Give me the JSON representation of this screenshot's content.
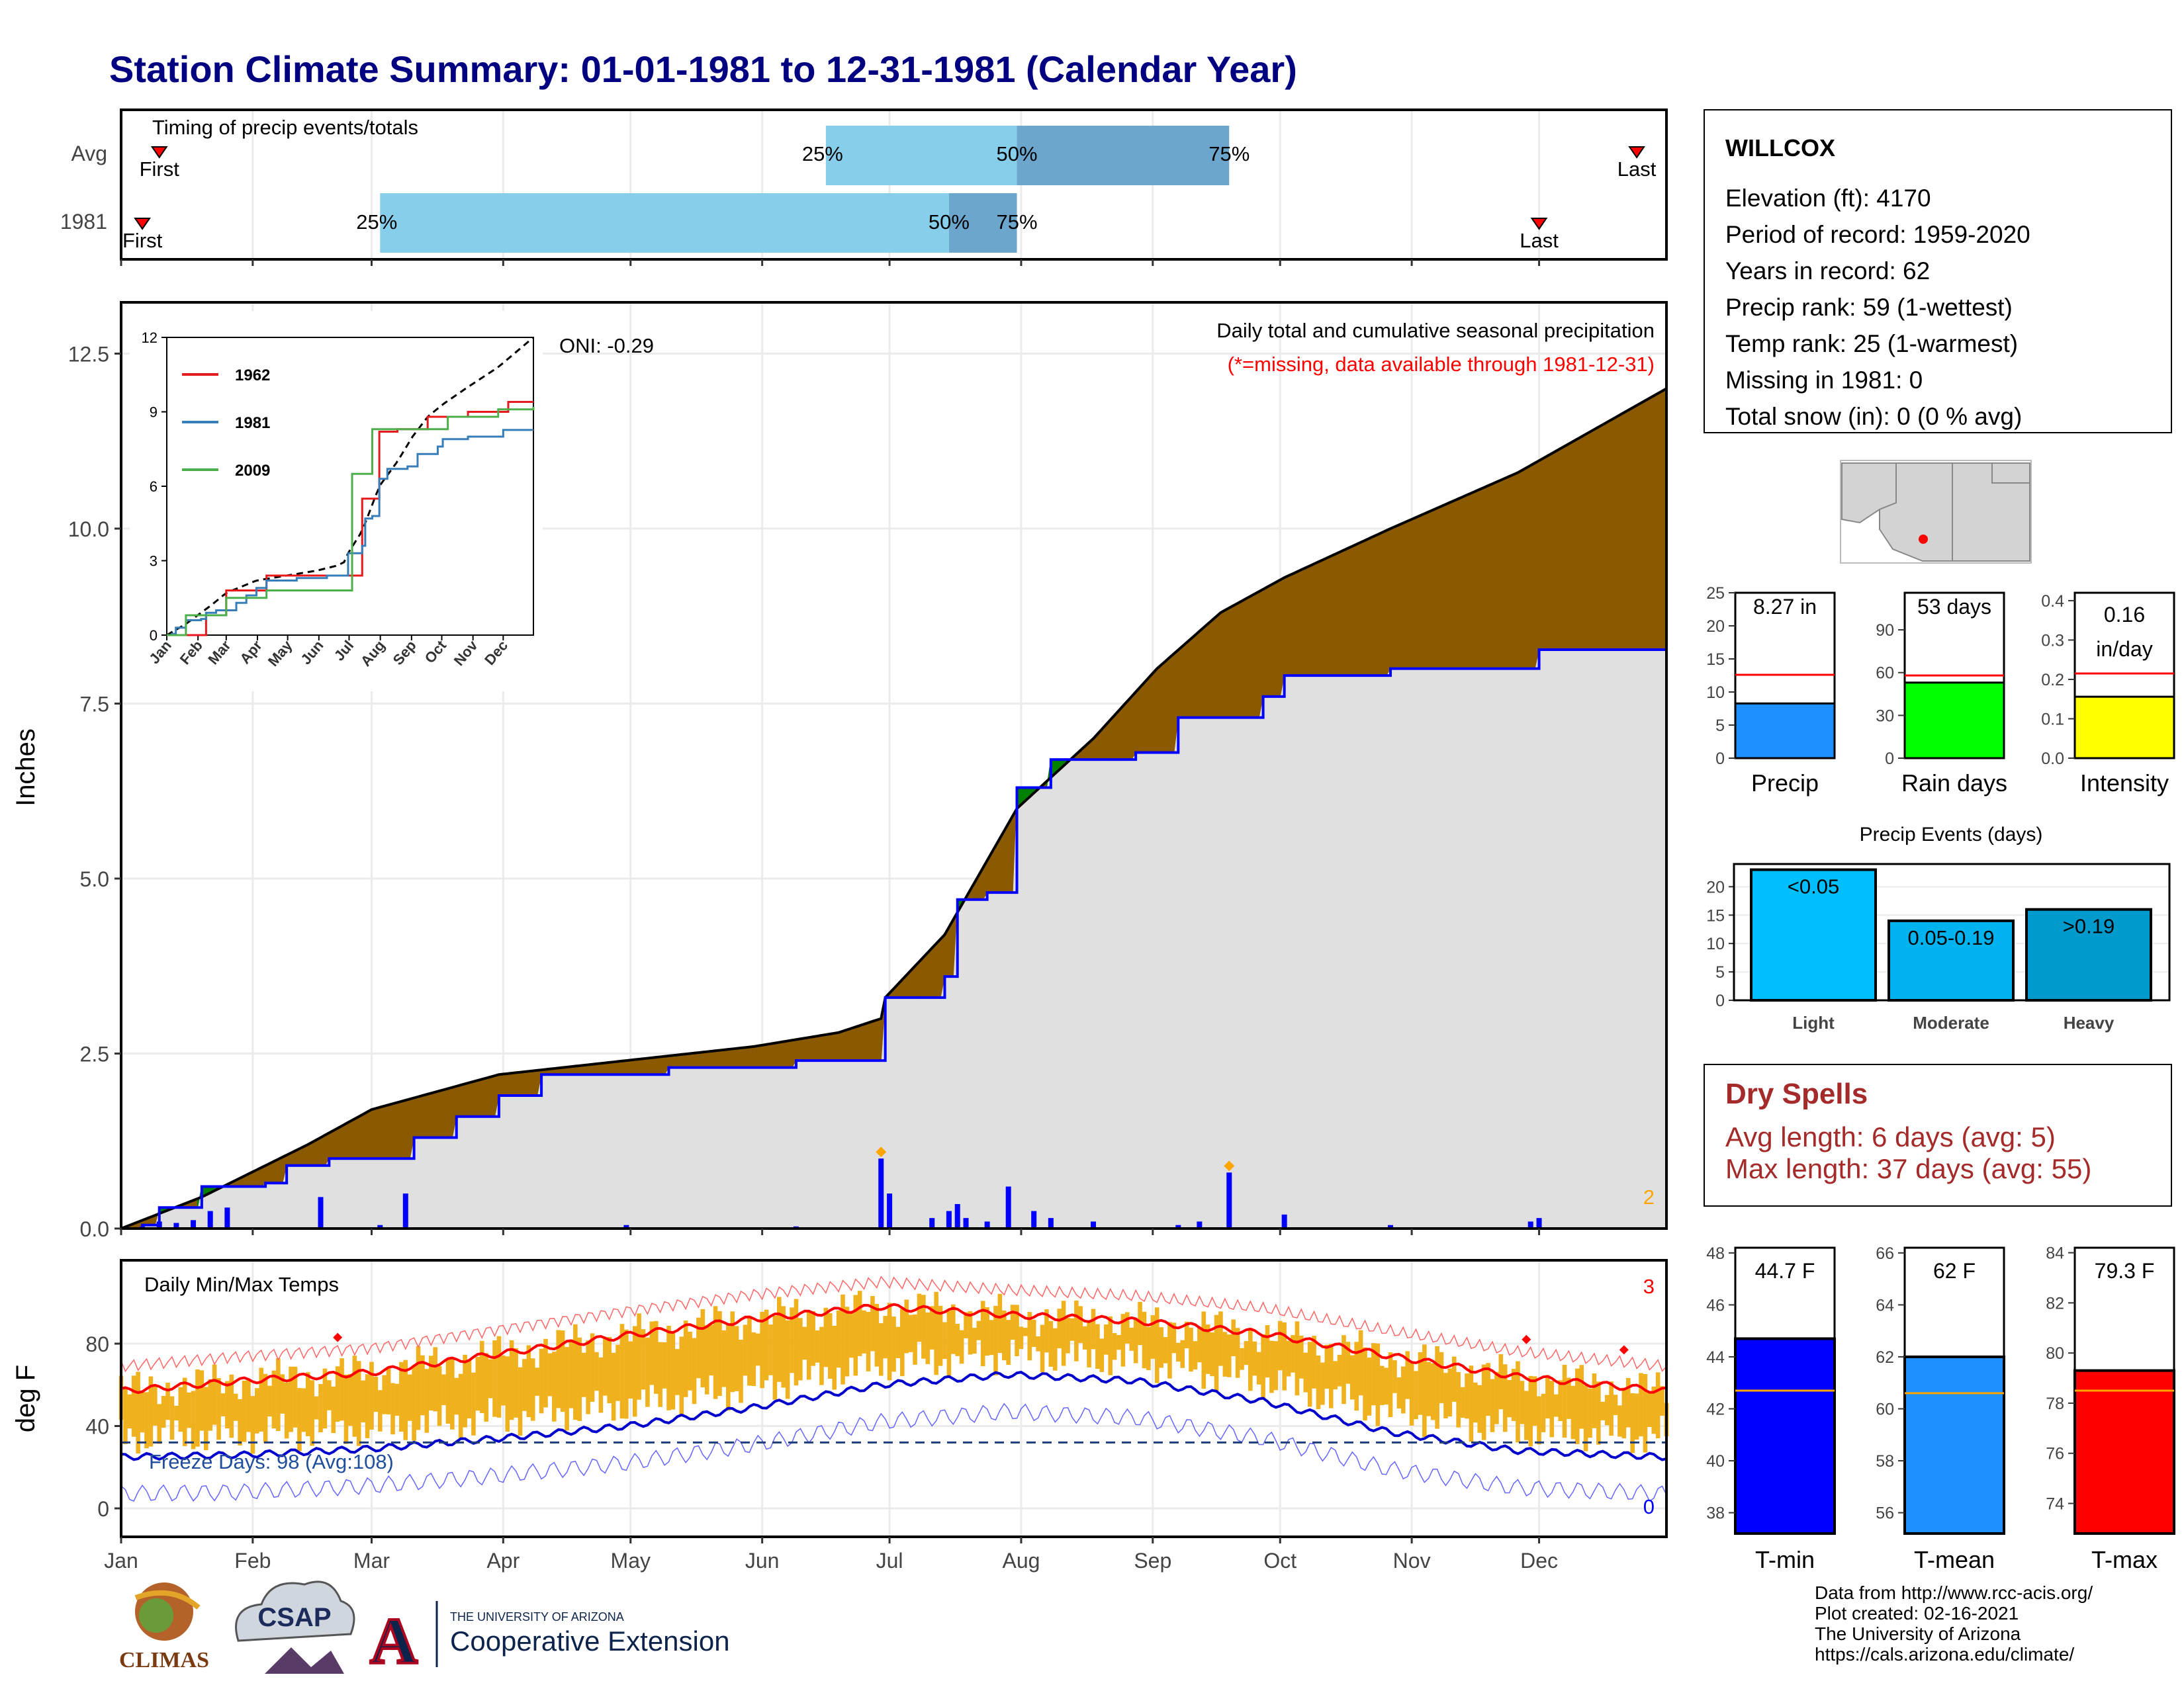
{
  "page": {
    "title": "Station Climate Summary: 01-01-1981 to 12-31-1981 (Calendar Year)"
  },
  "colors": {
    "title": "#000080",
    "light_blue": "#87ceeb",
    "mid_blue": "#6ca6cd",
    "brown": "#8b5a00",
    "green": "#008000",
    "gray_fill": "#e0e0e0",
    "blue_line": "#0000ff",
    "orange": "#ffa500",
    "gold": "#efb21e",
    "red": "#ff0000",
    "dry_spell": "#a52a2a"
  },
  "months": [
    "Jan",
    "Feb",
    "Mar",
    "Apr",
    "May",
    "Jun",
    "Jul",
    "Aug",
    "Sep",
    "Oct",
    "Nov",
    "Dec"
  ],
  "timing": {
    "title": "Timing of precip events/totals",
    "rows": [
      {
        "label": "Avg",
        "first_label": "First",
        "last_label": "Last",
        "first_day": 10,
        "last_day": 358,
        "p25": 167,
        "p50": 212,
        "p75": 262,
        "p25_label": "25%",
        "p50_label": "50%",
        "p75_label": "75%"
      },
      {
        "label": "1981",
        "first_label": "First",
        "last_label": "Last",
        "first_day": 6,
        "last_day": 335,
        "p25": 62,
        "p50": 196,
        "p75": 212,
        "p25_label": "25%",
        "p50_label": "50%",
        "p75_label": "75%"
      }
    ]
  },
  "main": {
    "ylabel": "Inches",
    "annotation_title": "Daily total and cumulative seasonal precipitation",
    "annotation_missing": "(*=missing, data available through 1981-12-31)",
    "oni": "ONI: -0.29",
    "corner_count": "2"
  },
  "inset": {
    "yticks": [
      "0",
      "3",
      "6",
      "9",
      "12"
    ],
    "xticks": [
      "Jan",
      "Feb",
      "Mar",
      "Apr",
      "May",
      "Jun",
      "Jul",
      "Aug",
      "Sep",
      "Oct",
      "Nov",
      "Dec"
    ],
    "legend": [
      {
        "label": "1962",
        "color": "#e41a1c"
      },
      {
        "label": "1981",
        "color": "#377eb8"
      },
      {
        "label": "2009",
        "color": "#4daf4a"
      }
    ]
  },
  "temps": {
    "title": "Daily Min/Max Temps",
    "ylabel": "deg F",
    "freeze_label": "Freeze Days: 98 (Avg:108)",
    "corner_top": "3",
    "corner_bottom": "0",
    "yticks": [
      "0",
      "40",
      "80"
    ]
  },
  "station": {
    "name": "WILLCOX",
    "lines": [
      "Elevation (ft): 4170",
      "Period of record: 1959-2020",
      "Years in record: 62",
      "Precip rank: 59 (1-wettest)",
      "Temp rank: 25 (1-warmest)",
      "Missing in 1981: 0",
      "Total snow (in): 0 (0 % avg)"
    ]
  },
  "mini_bars": [
    {
      "name": "Precip",
      "value_label": "8.27 in",
      "value_label2": "",
      "value": 8.27,
      "avg": 12.6,
      "ymax": 25,
      "ticks": [
        "0",
        "5",
        "10",
        "15",
        "20",
        "25"
      ],
      "tick_values": [
        0,
        5,
        10,
        15,
        20,
        25
      ],
      "color": "#1e90ff"
    },
    {
      "name": "Rain days",
      "value_label": "53 days",
      "value_label2": "",
      "value": 53,
      "avg": 58,
      "ymax": 116,
      "ticks": [
        "0",
        "30",
        "60",
        "90"
      ],
      "tick_values": [
        0,
        30,
        60,
        90
      ],
      "color": "#00ff00"
    },
    {
      "name": "Intensity",
      "value_label": "0.16",
      "value_label2": "in/day",
      "value": 0.156,
      "avg": 0.215,
      "ymax": 0.42,
      "ticks": [
        "0.0",
        "0.1",
        "0.2",
        "0.3",
        "0.4"
      ],
      "tick_values": [
        0,
        0.1,
        0.2,
        0.3,
        0.4
      ],
      "color": "#ffff00"
    }
  ],
  "events": {
    "title": "Precip Events (days)",
    "yticks": [
      "0",
      "5",
      "10",
      "15",
      "20"
    ],
    "tick_values": [
      0,
      5,
      10,
      15,
      20
    ],
    "ymax": 24,
    "bars": [
      {
        "label": "Light",
        "bar_text": "<0.05",
        "value": 23,
        "color": "#00bfff"
      },
      {
        "label": "Moderate",
        "bar_text": "0.05-0.19",
        "value": 14,
        "color": "#00b2ee"
      },
      {
        "label": "Heavy",
        "bar_text": ">0.19",
        "value": 16,
        "color": "#009acd"
      }
    ]
  },
  "dry_spells": {
    "title": "Dry Spells",
    "avg_line": "Avg length: 6 days (avg: 5)",
    "max_line": "Max length: 37 days (avg: 55)"
  },
  "temp_bars": [
    {
      "name": "T-min",
      "value_label": "44.7 F",
      "value": 44.7,
      "avg": 42.7,
      "ymin": 37.2,
      "ymax": 48.2,
      "ticks": [
        "38",
        "40",
        "42",
        "44",
        "46",
        "48"
      ],
      "tick_values": [
        38,
        40,
        42,
        44,
        46,
        48
      ],
      "color": "#0000ff"
    },
    {
      "name": "T-mean",
      "value_label": "62 F",
      "value": 62,
      "avg": 60.6,
      "ymin": 55.2,
      "ymax": 66.2,
      "ticks": [
        "56",
        "58",
        "60",
        "62",
        "64",
        "66"
      ],
      "tick_values": [
        56,
        58,
        60,
        62,
        64,
        66
      ],
      "color": "#1e90ff"
    },
    {
      "name": "T-max",
      "value_label": "79.3 F",
      "value": 79.3,
      "avg": 78.5,
      "ymin": 72.8,
      "ymax": 84.2,
      "ticks": [
        "74",
        "76",
        "78",
        "80",
        "82",
        "84"
      ],
      "tick_values": [
        74,
        76,
        78,
        80,
        82,
        84
      ],
      "color": "#ff0000"
    }
  ],
  "logos": {
    "climas": "CLIMAS",
    "csap": "CSAP",
    "ua_small": "THE UNIVERSITY OF ARIZONA",
    "coop": "Cooperative Extension",
    "ua_letter": "A"
  },
  "footer": {
    "lines": [
      "Data from http://www.rcc-acis.org/",
      "Plot created: 02-16-2021",
      "The University of Arizona",
      "https://cals.arizona.edu/climate/"
    ]
  },
  "chart_data": [
    {
      "type": "area",
      "title": "Daily total and cumulative seasonal precipitation",
      "ylabel": "Inches",
      "ylim": [
        0,
        13
      ],
      "yticks": [
        0,
        2.5,
        5,
        7.5,
        10,
        12.5
      ],
      "x_unit": "day of year",
      "series": [
        {
          "name": "Avg",
          "x": [
            1,
            20,
            45,
            60,
            90,
            120,
            150,
            170,
            180,
            181,
            195,
            212,
            230,
            245,
            260,
            275,
            300,
            330,
            365
          ],
          "y": [
            0,
            0.45,
            1.2,
            1.7,
            2.2,
            2.4,
            2.6,
            2.8,
            3.0,
            3.3,
            4.2,
            6.0,
            7.0,
            8.0,
            8.8,
            9.3,
            10.0,
            10.8,
            12.0
          ]
        },
        {
          "name": "1981",
          "x": [
            1,
            6,
            10,
            20,
            35,
            40,
            50,
            62,
            70,
            80,
            90,
            100,
            130,
            160,
            180,
            181,
            188,
            195,
            198,
            205,
            212,
            220,
            225,
            235,
            240,
            247,
            250,
            255,
            270,
            275,
            300,
            320,
            333,
            335,
            340,
            365
          ],
          "y": [
            0,
            0.05,
            0.3,
            0.6,
            0.65,
            0.9,
            1.0,
            1.0,
            1.3,
            1.6,
            1.9,
            2.2,
            2.3,
            2.4,
            2.4,
            3.3,
            3.3,
            3.6,
            4.7,
            4.8,
            6.3,
            6.7,
            6.7,
            6.7,
            6.8,
            6.8,
            7.3,
            7.3,
            7.6,
            7.9,
            8.0,
            8.0,
            8.0,
            8.27,
            8.27,
            8.27
          ]
        }
      ],
      "daily_bars": {
        "x": [
          6,
          10,
          14,
          18,
          22,
          26,
          48,
          62,
          68,
          120,
          160,
          180,
          182,
          192,
          196,
          198,
          200,
          205,
          210,
          216,
          220,
          230,
          250,
          255,
          262,
          275,
          300,
          333,
          335
        ],
        "y": [
          0.03,
          0.1,
          0.08,
          0.12,
          0.25,
          0.3,
          0.45,
          0.05,
          0.5,
          0.05,
          0.03,
          1.0,
          0.5,
          0.15,
          0.25,
          0.35,
          0.15,
          0.1,
          0.6,
          0.25,
          0.15,
          0.1,
          0.05,
          0.1,
          0.8,
          0.2,
          0.05,
          0.1,
          0.15
        ]
      }
    },
    {
      "type": "line",
      "title": "Daily Min/Max Temps",
      "ylabel": "deg F",
      "ylim": [
        -7,
        100
      ],
      "yticks": [
        0,
        40,
        80
      ],
      "series": [
        {
          "name": "Normal max",
          "x": [
            1,
            30,
            60,
            90,
            120,
            150,
            180,
            210,
            240,
            270,
            300,
            330,
            365
          ],
          "y": [
            57,
            62,
            66,
            75,
            84,
            92,
            98,
            94,
            91,
            85,
            74,
            64,
            57
          ]
        },
        {
          "name": "Normal min",
          "x": [
            1,
            30,
            60,
            90,
            120,
            150,
            180,
            210,
            240,
            270,
            300,
            330,
            365
          ],
          "y": [
            25,
            26,
            29,
            34,
            40,
            49,
            60,
            65,
            62,
            52,
            37,
            28,
            25
          ]
        },
        {
          "name": "Freeze threshold",
          "x": [
            1,
            365
          ],
          "y": [
            32,
            32
          ]
        }
      ]
    },
    {
      "type": "bar",
      "title": "Precip Events (days)",
      "categories": [
        "Light",
        "Moderate",
        "Heavy"
      ],
      "values": [
        23,
        14,
        16
      ]
    }
  ]
}
